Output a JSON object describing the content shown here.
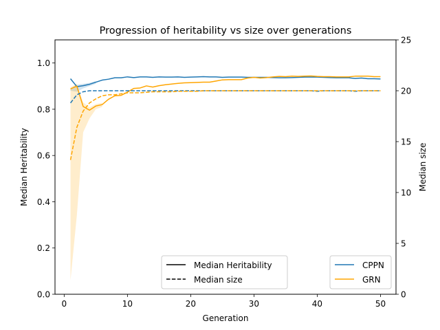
{
  "chart_data": {
    "type": "line",
    "title": "Progression of heritability vs size over generations",
    "xlabel": "Generation",
    "ylabel": "Median Heritability",
    "y2label": "Median size",
    "xlim": [
      -1.45,
      52.45
    ],
    "ylim": [
      0,
      1.1
    ],
    "y2lim": [
      0,
      25
    ],
    "xticks": [
      0,
      10,
      20,
      30,
      40,
      50
    ],
    "yticks": [
      0.0,
      0.2,
      0.4,
      0.6,
      0.8,
      1.0
    ],
    "y2ticks": [
      0,
      5,
      10,
      15,
      20,
      25
    ],
    "grid": false,
    "style_legend": {
      "placement": "lower center",
      "entries": [
        {
          "label": "Median Heritability",
          "linestyle": "solid"
        },
        {
          "label": "Median size",
          "linestyle": "dashed"
        }
      ]
    },
    "color_legend": {
      "placement": "lower right",
      "entries": [
        {
          "label": "CPPN",
          "color": "#1f77b4"
        },
        {
          "label": "GRN",
          "color": "#ffa500"
        }
      ]
    },
    "x": [
      1,
      2,
      3,
      4,
      5,
      6,
      7,
      8,
      9,
      10,
      11,
      12,
      13,
      14,
      15,
      16,
      17,
      18,
      19,
      20,
      21,
      22,
      23,
      24,
      25,
      26,
      27,
      28,
      29,
      30,
      31,
      32,
      33,
      34,
      35,
      36,
      37,
      38,
      39,
      40,
      41,
      42,
      43,
      44,
      45,
      46,
      47,
      48,
      49,
      50
    ],
    "series": [
      {
        "name": "CPPN",
        "quantity": "Median Heritability",
        "axis": "left",
        "color": "#1f77b4",
        "linestyle": "solid",
        "values": [
          0.932,
          0.898,
          0.902,
          0.908,
          0.917,
          0.926,
          0.93,
          0.936,
          0.936,
          0.94,
          0.937,
          0.94,
          0.94,
          0.938,
          0.94,
          0.939,
          0.939,
          0.94,
          0.938,
          0.939,
          0.94,
          0.941,
          0.94,
          0.94,
          0.938,
          0.939,
          0.939,
          0.939,
          0.938,
          0.938,
          0.938,
          0.938,
          0.937,
          0.936,
          0.936,
          0.937,
          0.938,
          0.939,
          0.939,
          0.939,
          0.938,
          0.937,
          0.936,
          0.936,
          0.936,
          0.933,
          0.935,
          0.932,
          0.932,
          0.931
        ]
      },
      {
        "name": "GRN",
        "quantity": "Median Heritability",
        "axis": "left",
        "color": "#ffa500",
        "linestyle": "solid",
        "values": [
          0.888,
          0.9,
          0.812,
          0.796,
          0.814,
          0.82,
          0.843,
          0.858,
          0.86,
          0.874,
          0.89,
          0.892,
          0.901,
          0.896,
          0.902,
          0.906,
          0.909,
          0.912,
          0.914,
          0.915,
          0.916,
          0.917,
          0.917,
          0.922,
          0.927,
          0.928,
          0.928,
          0.928,
          0.935,
          0.938,
          0.935,
          0.937,
          0.94,
          0.942,
          0.941,
          0.943,
          0.942,
          0.943,
          0.944,
          0.942,
          0.941,
          0.941,
          0.94,
          0.94,
          0.94,
          0.943,
          0.943,
          0.943,
          0.941,
          0.941
        ]
      },
      {
        "name": "CPPN",
        "quantity": "Median size",
        "axis": "right",
        "color": "#1f77b4",
        "linestyle": "dashed",
        "values": [
          18.8,
          19.6,
          19.9,
          20.0,
          20.0,
          20.0,
          20.0,
          20.0,
          20.0,
          20.0,
          20.0,
          20.0,
          20.0,
          20.0,
          20.0,
          20.0,
          20.0,
          20.0,
          20.0,
          20.0,
          20.0,
          20.0,
          20.0,
          20.0,
          20.0,
          20.0,
          20.0,
          20.0,
          20.0,
          20.0,
          20.0,
          20.0,
          20.0,
          20.0,
          20.0,
          20.0,
          20.0,
          20.0,
          20.0,
          19.95,
          20.0,
          20.0,
          20.0,
          20.0,
          20.0,
          19.95,
          20.0,
          20.0,
          20.0,
          20.0
        ]
      },
      {
        "name": "GRN",
        "quantity": "Median size",
        "axis": "right",
        "color": "#ffa500",
        "linestyle": "dashed",
        "values": [
          13.2,
          16.4,
          18.0,
          18.8,
          19.2,
          19.5,
          19.6,
          19.6,
          19.7,
          19.8,
          19.8,
          19.8,
          19.85,
          19.9,
          19.9,
          19.9,
          19.9,
          19.95,
          19.95,
          19.95,
          19.95,
          20.0,
          20.0,
          20.0,
          20.0,
          20.0,
          20.0,
          20.0,
          20.0,
          20.0,
          20.0,
          20.0,
          20.0,
          20.0,
          20.0,
          20.0,
          20.0,
          20.0,
          20.0,
          20.0,
          20.0,
          20.0,
          20.0,
          20.0,
          20.0,
          20.0,
          20.0,
          20.0,
          20.0,
          20.0
        ]
      }
    ],
    "bands": [
      {
        "series": "CPPN",
        "quantity": "Median Heritability",
        "axis": "left",
        "color": "#1f77b4",
        "x": [
          1,
          2,
          3,
          4,
          5
        ],
        "lower": [
          0.88,
          0.876,
          0.89,
          0.9,
          0.91
        ],
        "upper": [
          0.89,
          0.906,
          0.91,
          0.914,
          0.922
        ]
      },
      {
        "series": "GRN",
        "quantity": "Median Heritability",
        "axis": "left",
        "color": "#ffa500",
        "x": [
          1,
          2,
          3,
          4,
          5,
          6
        ],
        "lower": [
          0.06,
          0.34,
          0.7,
          0.76,
          0.8,
          0.81
        ],
        "upper": [
          0.895,
          0.91,
          0.83,
          0.808,
          0.822,
          0.828
        ]
      }
    ]
  }
}
